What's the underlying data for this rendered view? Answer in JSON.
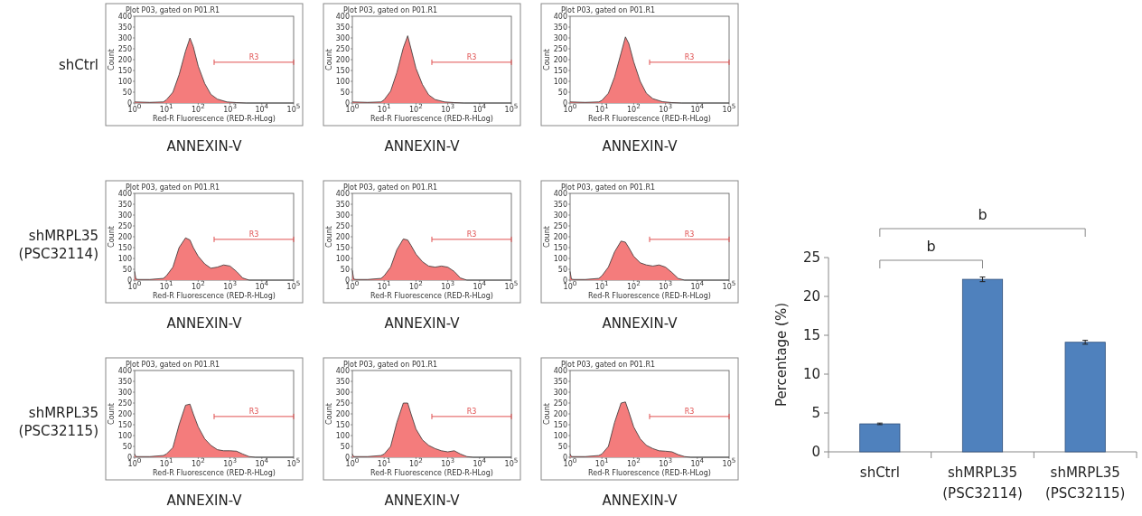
{
  "chart_data": [
    {
      "type": "area",
      "title": "Plot P03, gated on P01.R1",
      "xlabel": "Red-R Fluorescence (RED-R-HLog)",
      "ylabel": "Count",
      "annotations": [
        "ANNEXIN-V",
        "shCtrl"
      ],
      "log": "x",
      "xlim": [
        1,
        100000
      ],
      "xticks": [
        {
          "value": 1,
          "label": "10$^{0}$"
        },
        {
          "value": 10,
          "label": "10$^{1}$"
        },
        {
          "value": 100,
          "label": "10$^{2}$"
        },
        {
          "value": 1000,
          "label": "10$^{3}$"
        },
        {
          "value": 10000,
          "label": "10$^{4}$"
        },
        {
          "value": 100000,
          "label": "10$^{5}$"
        }
      ],
      "ylim": [
        0,
        400
      ],
      "yticks": [
        0,
        50,
        100,
        150,
        200,
        250,
        300,
        350,
        400
      ],
      "series": [
        {
          "type": "area",
          "color": "#f47c7c",
          "x": [
            1,
            3,
            8,
            10,
            16,
            25,
            40,
            55,
            70,
            100,
            160,
            250,
            400,
            800,
            1600,
            3200,
            100000
          ],
          "values": [
            5,
            3,
            5,
            15,
            50,
            130,
            240,
            300,
            260,
            170,
            90,
            40,
            18,
            5,
            2,
            0,
            0
          ]
        },
        {
          "type": "line",
          "name": "R3",
          "color": "#e05050",
          "x": [
            316,
            100000
          ],
          "values": [
            188,
            188
          ]
        }
      ]
    },
    {
      "type": "area",
      "title": "Plot P03, gated on P01.R1",
      "xlabel": "Red-R Fluorescence (RED-R-HLog)",
      "ylabel": "Count",
      "annotations": [
        "ANNEXIN-V"
      ],
      "log": "x",
      "xlim": [
        1,
        100000
      ],
      "xticks": [
        {
          "value": 1,
          "label": "10$^{0}$"
        },
        {
          "value": 10,
          "label": "10$^{1}$"
        },
        {
          "value": 100,
          "label": "10$^{2}$"
        },
        {
          "value": 1000,
          "label": "10$^{3}$"
        },
        {
          "value": 10000,
          "label": "10$^{4}$"
        },
        {
          "value": 100000,
          "label": "10$^{5}$"
        }
      ],
      "ylim": [
        0,
        400
      ],
      "yticks": [
        0,
        50,
        100,
        150,
        200,
        250,
        300,
        350,
        400
      ],
      "series": [
        {
          "type": "area",
          "color": "#f47c7c",
          "x": [
            1,
            3,
            8,
            10,
            16,
            25,
            40,
            55,
            70,
            100,
            160,
            250,
            400,
            800,
            1600,
            3200,
            100000
          ],
          "values": [
            5,
            3,
            5,
            15,
            55,
            140,
            255,
            310,
            250,
            160,
            85,
            38,
            16,
            5,
            2,
            0,
            0
          ]
        },
        {
          "type": "line",
          "name": "R3",
          "color": "#e05050",
          "x": [
            316,
            100000
          ],
          "values": [
            188,
            188
          ]
        }
      ]
    },
    {
      "type": "area",
      "title": "Plot P03, gated on P01.R1",
      "xlabel": "Red-R Fluorescence (RED-R-HLog)",
      "ylabel": "Count",
      "annotations": [
        "ANNEXIN-V"
      ],
      "log": "x",
      "xlim": [
        1,
        100000
      ],
      "xticks": [
        {
          "value": 1,
          "label": "10$^{0}$"
        },
        {
          "value": 10,
          "label": "10$^{1}$"
        },
        {
          "value": 100,
          "label": "10$^{2}$"
        },
        {
          "value": 1000,
          "label": "10$^{3}$"
        },
        {
          "value": 10000,
          "label": "10$^{4}$"
        },
        {
          "value": 100000,
          "label": "10$^{5}$"
        }
      ],
      "ylim": [
        0,
        400
      ],
      "yticks": [
        0,
        50,
        100,
        150,
        200,
        250,
        300,
        350,
        400
      ],
      "series": [
        {
          "type": "area",
          "color": "#f47c7c",
          "x": [
            1,
            3,
            8,
            10,
            16,
            25,
            40,
            55,
            70,
            100,
            160,
            250,
            400,
            800,
            1600,
            3200,
            100000
          ],
          "values": [
            5,
            3,
            5,
            12,
            45,
            120,
            230,
            305,
            275,
            190,
            100,
            45,
            20,
            6,
            2,
            0,
            0
          ]
        },
        {
          "type": "line",
          "name": "R3",
          "color": "#e05050",
          "x": [
            316,
            100000
          ],
          "values": [
            188,
            188
          ]
        }
      ]
    },
    {
      "type": "area",
      "title": "Plot P03, gated on P01.R1",
      "xlabel": "Red-R Fluorescence (RED-R-HLog)",
      "ylabel": "Count",
      "annotations": [
        "ANNEXIN-V",
        "shMRPL35\n(PSC32114)"
      ],
      "log": "x",
      "xlim": [
        1,
        100000
      ],
      "xticks": [
        {
          "value": 1,
          "label": "10$^{0}$"
        },
        {
          "value": 10,
          "label": "10$^{1}$"
        },
        {
          "value": 100,
          "label": "10$^{2}$"
        },
        {
          "value": 1000,
          "label": "10$^{3}$"
        },
        {
          "value": 10000,
          "label": "10$^{4}$"
        },
        {
          "value": 100000,
          "label": "10$^{5}$"
        }
      ],
      "ylim": [
        0,
        400
      ],
      "yticks": [
        0,
        50,
        100,
        150,
        200,
        250,
        300,
        350,
        400
      ],
      "series": [
        {
          "type": "area",
          "color": "#f47c7c",
          "x": [
            1,
            1.1,
            1.3,
            3,
            8,
            10,
            16,
            25,
            40,
            55,
            70,
            100,
            160,
            250,
            400,
            630,
            1000,
            1600,
            2500,
            4000,
            100000
          ],
          "values": [
            40,
            5,
            3,
            3,
            8,
            20,
            60,
            150,
            195,
            185,
            150,
            110,
            75,
            55,
            60,
            70,
            65,
            40,
            10,
            0,
            0
          ]
        },
        {
          "type": "line",
          "name": "R3",
          "color": "#e05050",
          "x": [
            316,
            100000
          ],
          "values": [
            188,
            188
          ]
        }
      ]
    },
    {
      "type": "area",
      "title": "Plot P03, gated on P01.R1",
      "xlabel": "Red-R Fluorescence (RED-R-HLog)",
      "ylabel": "Count",
      "annotations": [
        "ANNEXIN-V"
      ],
      "log": "x",
      "xlim": [
        1,
        100000
      ],
      "xticks": [
        {
          "value": 1,
          "label": "10$^{0}$"
        },
        {
          "value": 10,
          "label": "10$^{1}$"
        },
        {
          "value": 100,
          "label": "10$^{2}$"
        },
        {
          "value": 1000,
          "label": "10$^{3}$"
        },
        {
          "value": 10000,
          "label": "10$^{4}$"
        },
        {
          "value": 100000,
          "label": "10$^{5}$"
        }
      ],
      "ylim": [
        0,
        400
      ],
      "yticks": [
        0,
        50,
        100,
        150,
        200,
        250,
        300,
        350,
        400
      ],
      "series": [
        {
          "type": "area",
          "color": "#f47c7c",
          "x": [
            1,
            1.1,
            1.3,
            3,
            8,
            10,
            16,
            25,
            40,
            55,
            70,
            100,
            160,
            250,
            400,
            630,
            1000,
            1600,
            2500,
            4000,
            100000
          ],
          "values": [
            45,
            5,
            3,
            3,
            8,
            20,
            60,
            140,
            190,
            185,
            160,
            120,
            85,
            65,
            60,
            65,
            60,
            40,
            10,
            0,
            0
          ]
        },
        {
          "type": "line",
          "name": "R3",
          "color": "#e05050",
          "x": [
            316,
            100000
          ],
          "values": [
            188,
            188
          ]
        }
      ]
    },
    {
      "type": "area",
      "title": "Plot P03, gated on P01.R1",
      "xlabel": "Red-R Fluorescence (RED-R-HLog)",
      "ylabel": "Count",
      "annotations": [
        "ANNEXIN-V"
      ],
      "log": "x",
      "xlim": [
        1,
        100000
      ],
      "xticks": [
        {
          "value": 1,
          "label": "10$^{0}$"
        },
        {
          "value": 10,
          "label": "10$^{1}$"
        },
        {
          "value": 100,
          "label": "10$^{2}$"
        },
        {
          "value": 1000,
          "label": "10$^{3}$"
        },
        {
          "value": 10000,
          "label": "10$^{4}$"
        },
        {
          "value": 100000,
          "label": "10$^{5}$"
        }
      ],
      "ylim": [
        0,
        400
      ],
      "yticks": [
        0,
        50,
        100,
        150,
        200,
        250,
        300,
        350,
        400
      ],
      "series": [
        {
          "type": "area",
          "color": "#f47c7c",
          "x": [
            1,
            1.1,
            1.3,
            3,
            8,
            10,
            16,
            25,
            40,
            55,
            70,
            100,
            160,
            250,
            400,
            630,
            1000,
            1600,
            2500,
            4000,
            100000
          ],
          "values": [
            40,
            5,
            3,
            3,
            8,
            20,
            60,
            130,
            180,
            175,
            150,
            110,
            80,
            70,
            65,
            70,
            60,
            35,
            8,
            0,
            0
          ]
        },
        {
          "type": "line",
          "name": "R3",
          "color": "#e05050",
          "x": [
            316,
            100000
          ],
          "values": [
            188,
            188
          ]
        }
      ]
    },
    {
      "type": "area",
      "title": "Plot P03, gated on P01.R1",
      "xlabel": "Red-R Fluorescence (RED-R-HLog)",
      "ylabel": "Count",
      "annotations": [
        "ANNEXIN-V",
        "shMRPL35\n(PSC32115)"
      ],
      "log": "x",
      "xlim": [
        1,
        100000
      ],
      "xticks": [
        {
          "value": 1,
          "label": "10$^{0}$"
        },
        {
          "value": 10,
          "label": "10$^{1}$"
        },
        {
          "value": 100,
          "label": "10$^{2}$"
        },
        {
          "value": 1000,
          "label": "10$^{3}$"
        },
        {
          "value": 10000,
          "label": "10$^{4}$"
        },
        {
          "value": 100000,
          "label": "10$^{5}$"
        }
      ],
      "ylim": [
        0,
        400
      ],
      "yticks": [
        0,
        50,
        100,
        150,
        200,
        250,
        300,
        350,
        400
      ],
      "series": [
        {
          "type": "area",
          "color": "#f47c7c",
          "x": [
            1,
            1.1,
            3,
            8,
            10,
            16,
            25,
            40,
            55,
            70,
            100,
            160,
            250,
            400,
            630,
            1000,
            1600,
            2500,
            4000,
            6300,
            100000
          ],
          "values": [
            15,
            3,
            3,
            8,
            15,
            45,
            150,
            240,
            245,
            200,
            140,
            85,
            55,
            35,
            30,
            30,
            28,
            15,
            3,
            0,
            0
          ]
        },
        {
          "type": "line",
          "name": "R3",
          "color": "#e05050",
          "x": [
            316,
            100000
          ],
          "values": [
            188,
            188
          ]
        }
      ]
    },
    {
      "type": "area",
      "title": "Plot P03, gated on P01.R1",
      "xlabel": "Red-R Fluorescence (RED-R-HLog)",
      "ylabel": "Count",
      "annotations": [
        "ANNEXIN-V"
      ],
      "log": "x",
      "xlim": [
        1,
        100000
      ],
      "xticks": [
        {
          "value": 1,
          "label": "10$^{0}$"
        },
        {
          "value": 10,
          "label": "10$^{1}$"
        },
        {
          "value": 100,
          "label": "10$^{2}$"
        },
        {
          "value": 1000,
          "label": "10$^{3}$"
        },
        {
          "value": 10000,
          "label": "10$^{4}$"
        },
        {
          "value": 100000,
          "label": "10$^{5}$"
        }
      ],
      "ylim": [
        0,
        400
      ],
      "yticks": [
        0,
        50,
        100,
        150,
        200,
        250,
        300,
        350,
        400
      ],
      "series": [
        {
          "type": "area",
          "color": "#f47c7c",
          "x": [
            1,
            1.1,
            3,
            8,
            10,
            16,
            25,
            40,
            55,
            70,
            100,
            160,
            250,
            400,
            630,
            1000,
            1600,
            2500,
            4000,
            6300,
            100000
          ],
          "values": [
            15,
            3,
            3,
            8,
            15,
            50,
            160,
            250,
            250,
            200,
            130,
            80,
            55,
            40,
            30,
            25,
            30,
            15,
            3,
            0,
            0
          ]
        },
        {
          "type": "line",
          "name": "R3",
          "color": "#e05050",
          "x": [
            316,
            100000
          ],
          "values": [
            188,
            188
          ]
        }
      ]
    },
    {
      "type": "area",
      "title": "Plot P03, gated on P01.R1",
      "xlabel": "Red-R Fluorescence (RED-R-HLog)",
      "ylabel": "Count",
      "annotations": [
        "ANNEXIN-V"
      ],
      "log": "x",
      "xlim": [
        1,
        100000
      ],
      "xticks": [
        {
          "value": 1,
          "label": "10$^{0}$"
        },
        {
          "value": 10,
          "label": "10$^{1}$"
        },
        {
          "value": 100,
          "label": "10$^{2}$"
        },
        {
          "value": 1000,
          "label": "10$^{3}$"
        },
        {
          "value": 10000,
          "label": "10$^{4}$"
        },
        {
          "value": 100000,
          "label": "10$^{5}$"
        }
      ],
      "ylim": [
        0,
        400
      ],
      "yticks": [
        0,
        50,
        100,
        150,
        200,
        250,
        300,
        350,
        400
      ],
      "series": [
        {
          "type": "area",
          "color": "#f47c7c",
          "x": [
            1,
            1.1,
            3,
            8,
            10,
            16,
            25,
            40,
            55,
            70,
            100,
            160,
            250,
            400,
            630,
            1000,
            1600,
            2500,
            4000,
            6300,
            100000
          ],
          "values": [
            15,
            3,
            3,
            8,
            15,
            50,
            160,
            250,
            255,
            210,
            140,
            85,
            55,
            40,
            30,
            28,
            25,
            12,
            3,
            0,
            0
          ]
        },
        {
          "type": "line",
          "name": "R3",
          "color": "#e05050",
          "x": [
            316,
            100000
          ],
          "values": [
            188,
            188
          ]
        }
      ]
    },
    {
      "type": "bar",
      "ylabel": "Percentage (%)",
      "categories": [
        "shCtrl",
        "shMRPL35\n(PSC32114)",
        "shMRPL35\n(PSC32115)"
      ],
      "values": [
        3.6,
        22.2,
        14.1
      ],
      "errors": [
        0.1,
        0.3,
        0.25
      ],
      "color": "#4f81bd",
      "ylim": [
        0,
        25
      ],
      "yticks": [
        0,
        5,
        10,
        15,
        20,
        25
      ],
      "annotations": [
        "b",
        "b"
      ]
    }
  ]
}
